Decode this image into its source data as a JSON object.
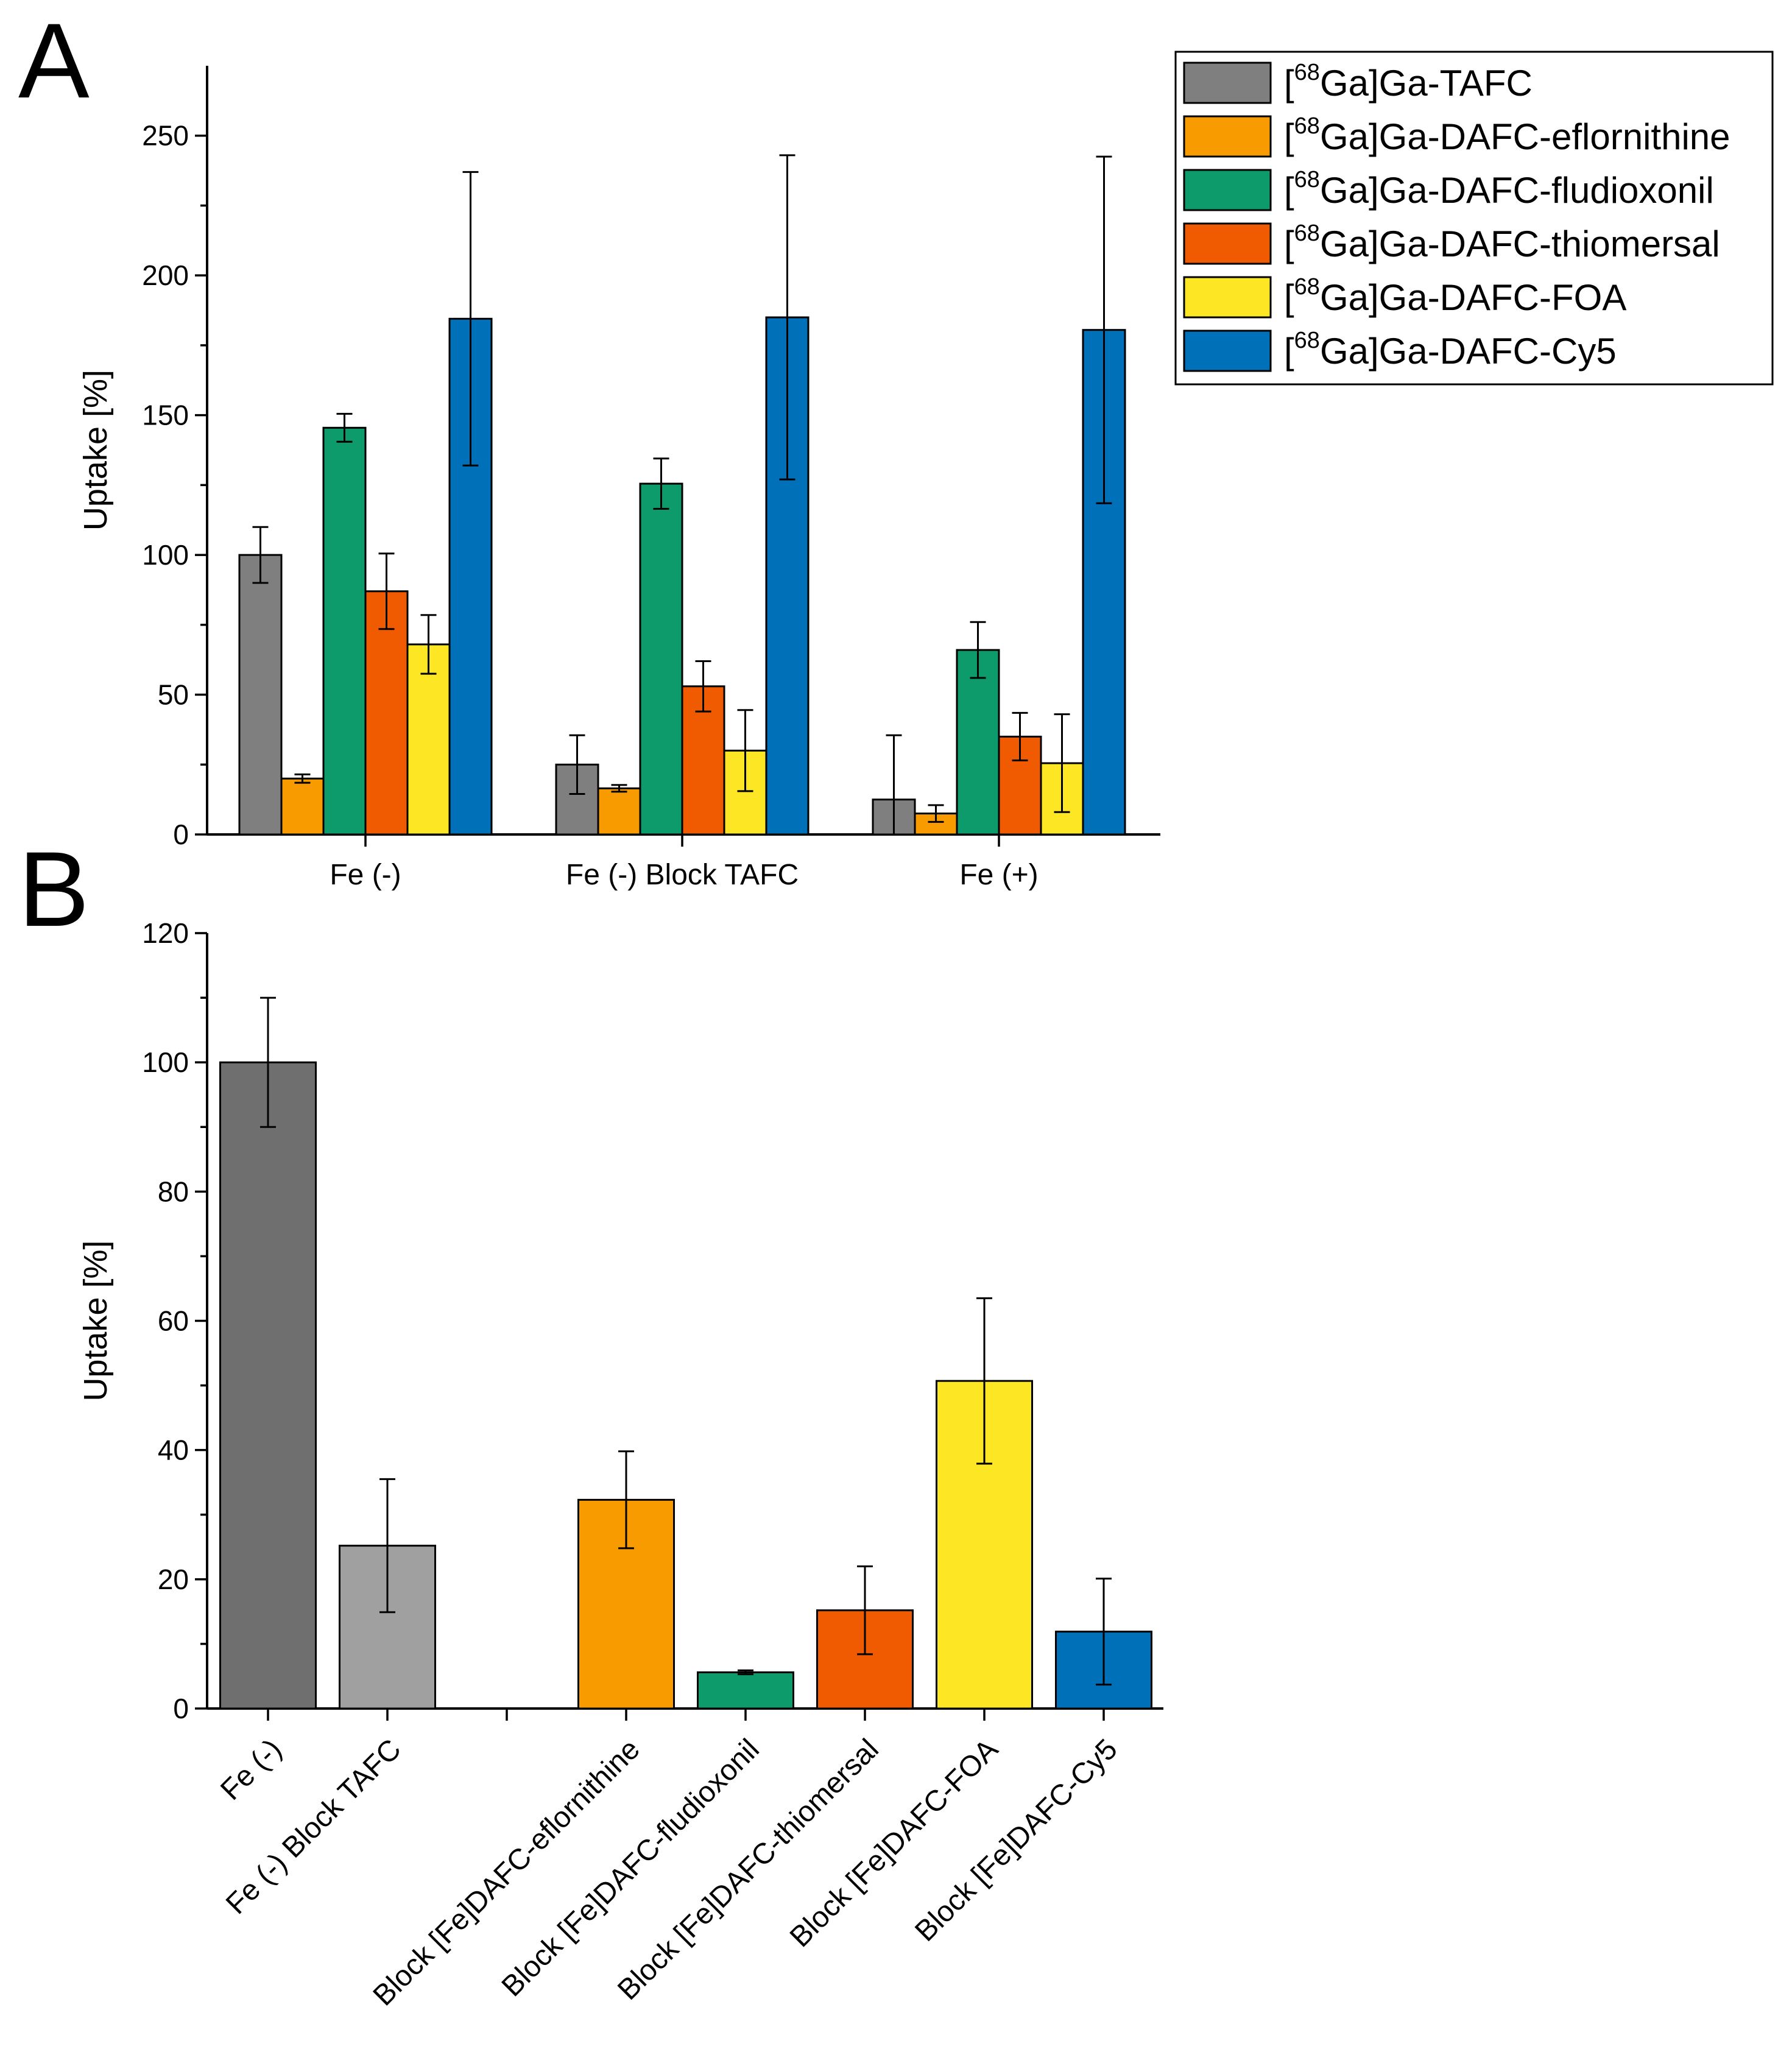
{
  "chart_data": [
    {
      "panel": "A",
      "type": "bar",
      "ylabel": "Uptake [%]",
      "ylim": [
        0,
        275
      ],
      "yticks": [
        0,
        50,
        100,
        150,
        200,
        250
      ],
      "categories": [
        "Fe (-)",
        "Fe (-) Block TAFC",
        "Fe (+)"
      ],
      "legend_position": "top-right",
      "series": [
        {
          "name": "[68Ga]Ga-TAFC",
          "label_prefix": "[",
          "label_sup": "68",
          "label_rest": "Ga]Ga-TAFC",
          "color": "#7f7f7f",
          "values": [
            100,
            25,
            12.5
          ],
          "errors": [
            10,
            10.5,
            23
          ]
        },
        {
          "name": "[68Ga]Ga-DAFC-eflornithine",
          "label_prefix": "[",
          "label_sup": "68",
          "label_rest": "Ga]Ga-DAFC-eflornithine",
          "color": "#f89b00",
          "values": [
            20,
            16.5,
            7.5
          ],
          "errors": [
            1.5,
            1.2,
            3
          ]
        },
        {
          "name": "[68Ga]Ga-DAFC-fludioxonil",
          "label_prefix": "[",
          "label_sup": "68",
          "label_rest": "Ga]Ga-DAFC-fludioxonil",
          "color": "#0d9b6c",
          "values": [
            145.5,
            125.5,
            66
          ],
          "errors": [
            5,
            9,
            10
          ]
        },
        {
          "name": "[68Ga]Ga-DAFC-thiomersal",
          "label_prefix": "[",
          "label_sup": "68",
          "label_rest": "Ga]Ga-DAFC-thiomersal",
          "color": "#f05a00",
          "values": [
            87,
            53,
            35
          ],
          "errors": [
            13.5,
            9,
            8.5
          ]
        },
        {
          "name": "[68Ga]Ga-DAFC-FOA",
          "label_prefix": "[",
          "label_sup": "68",
          "label_rest": "Ga]Ga-DAFC-FOA",
          "color": "#fde725",
          "values": [
            68,
            30,
            25.5
          ],
          "errors": [
            10.5,
            14.5,
            17.5
          ]
        },
        {
          "name": "[68Ga]Ga-DAFC-Cy5",
          "label_prefix": "[",
          "label_sup": "68",
          "label_rest": "Ga]Ga-DAFC-Cy5",
          "color": "#0070b8",
          "values": [
            184.5,
            185,
            180.5
          ],
          "errors": [
            52.5,
            58,
            62
          ]
        }
      ]
    },
    {
      "panel": "B",
      "type": "bar",
      "ylabel": "Uptake [%]",
      "ylim": [
        0,
        120
      ],
      "yticks": [
        0,
        20,
        40,
        60,
        80,
        100,
        120
      ],
      "categories": [
        "Fe (-)",
        "Fe (-) Block TAFC",
        "",
        "Block [Fe]DAFC-eflornithine",
        "Block [Fe]DAFC-fludioxonil",
        "Block [Fe]DAFC-thiomersal",
        "Block [Fe]DAFC-FOA",
        "Block [Fe]DAFC-Cy5"
      ],
      "values": [
        100,
        25.2,
        null,
        32.3,
        5.6,
        15.2,
        50.7,
        11.9
      ],
      "errors": [
        10,
        10.3,
        null,
        7.5,
        0.3,
        6.8,
        12.8,
        8.2
      ],
      "colors": [
        "#6f6f6f",
        "#a0a0a0",
        "#ffffff",
        "#f89b00",
        "#0d9b6c",
        "#f05a00",
        "#fde725",
        "#0070b8"
      ]
    }
  ],
  "panels": {
    "a_letter": "A",
    "b_letter": "B"
  }
}
